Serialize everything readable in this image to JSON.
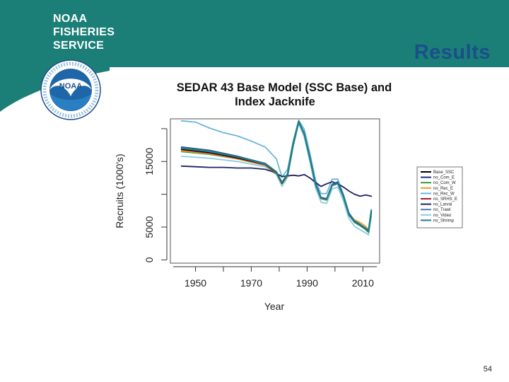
{
  "header": {
    "org_lines": [
      "NOAA",
      "FISHERIES",
      "SERVICE"
    ],
    "logo_text": "NOAA",
    "band_color": "#1b7f77"
  },
  "slide": {
    "title": "Results",
    "page_number": "54"
  },
  "chart_data": {
    "type": "line",
    "title_lines": [
      "SEDAR 43 Base Model (SSC Base) and",
      "Index Jacknife"
    ],
    "xlabel": "Year",
    "ylabel": "Recruits (1000's)",
    "xlim": [
      1941,
      2016
    ],
    "ylim": [
      -500,
      21500
    ],
    "x_ticks": [
      1950,
      1970,
      1990,
      2010
    ],
    "x_minor_ticks": [
      1960,
      1980,
      2000
    ],
    "y_ticks": [
      0,
      5000,
      15000
    ],
    "y_minor_ticks": [
      10000,
      20000
    ],
    "series": [
      {
        "name": "Base_SSC",
        "color": "#000000",
        "points": [
          [
            1945,
            16900
          ],
          [
            1955,
            16400
          ],
          [
            1965,
            15600
          ],
          [
            1975,
            14600
          ],
          [
            1979,
            13300
          ],
          [
            1981,
            11700
          ],
          [
            1983,
            13000
          ],
          [
            1985,
            17600
          ],
          [
            1987,
            21100
          ],
          [
            1989,
            19200
          ],
          [
            1991,
            15600
          ],
          [
            1993,
            11600
          ],
          [
            1995,
            9500
          ],
          [
            1997,
            9300
          ],
          [
            1999,
            11400
          ],
          [
            2001,
            11800
          ],
          [
            2003,
            9800
          ],
          [
            2005,
            7000
          ],
          [
            2007,
            5800
          ],
          [
            2009,
            5300
          ],
          [
            2011,
            4700
          ],
          [
            2012,
            4300
          ],
          [
            2013,
            7300
          ]
        ]
      },
      {
        "name": "no_Com_E",
        "color": "#1f2f8a",
        "points": [
          [
            1945,
            17200
          ],
          [
            1955,
            16700
          ],
          [
            1965,
            15800
          ],
          [
            1975,
            14700
          ],
          [
            1979,
            13400
          ],
          [
            1981,
            11800
          ],
          [
            1983,
            13100
          ],
          [
            1985,
            17700
          ],
          [
            1987,
            21100
          ],
          [
            1989,
            19300
          ],
          [
            1991,
            15600
          ],
          [
            1993,
            11700
          ],
          [
            1995,
            9500
          ],
          [
            1997,
            9300
          ],
          [
            1999,
            11500
          ],
          [
            2001,
            11800
          ],
          [
            2003,
            9800
          ],
          [
            2005,
            7000
          ],
          [
            2007,
            5900
          ],
          [
            2009,
            5400
          ],
          [
            2011,
            4800
          ],
          [
            2012,
            4400
          ],
          [
            2013,
            7400
          ]
        ]
      },
      {
        "name": "no_Com_W",
        "color": "#2e9e3e",
        "points": [
          [
            1945,
            16500
          ],
          [
            1955,
            16100
          ],
          [
            1965,
            15400
          ],
          [
            1975,
            14400
          ],
          [
            1979,
            13200
          ],
          [
            1981,
            11600
          ],
          [
            1983,
            12900
          ],
          [
            1985,
            17500
          ],
          [
            1987,
            21000
          ],
          [
            1989,
            19100
          ],
          [
            1991,
            15400
          ],
          [
            1993,
            11500
          ],
          [
            1995,
            9400
          ],
          [
            1997,
            9200
          ],
          [
            1999,
            11300
          ],
          [
            2001,
            11600
          ],
          [
            2003,
            9600
          ],
          [
            2005,
            6800
          ],
          [
            2007,
            5700
          ],
          [
            2009,
            5200
          ],
          [
            2011,
            4600
          ],
          [
            2012,
            4200
          ],
          [
            2013,
            7100
          ]
        ]
      },
      {
        "name": "no_Rec_E",
        "color": "#e0a020",
        "points": [
          [
            1945,
            16600
          ],
          [
            1955,
            16200
          ],
          [
            1965,
            15400
          ],
          [
            1975,
            14400
          ],
          [
            1979,
            13200
          ],
          [
            1981,
            11600
          ],
          [
            1983,
            12900
          ],
          [
            1985,
            17500
          ],
          [
            1987,
            21000
          ],
          [
            1989,
            19100
          ],
          [
            1991,
            15500
          ],
          [
            1993,
            11500
          ],
          [
            1995,
            9300
          ],
          [
            1997,
            9100
          ],
          [
            1999,
            11300
          ],
          [
            2001,
            11700
          ],
          [
            2003,
            9700
          ],
          [
            2005,
            6900
          ],
          [
            2007,
            6100
          ],
          [
            2009,
            5700
          ],
          [
            2011,
            5100
          ],
          [
            2012,
            4600
          ],
          [
            2013,
            7300
          ]
        ]
      },
      {
        "name": "no_Rec_W",
        "color": "#6bb5dc",
        "points": [
          [
            1945,
            21200
          ],
          [
            1950,
            21000
          ],
          [
            1955,
            20100
          ],
          [
            1960,
            19400
          ],
          [
            1965,
            18900
          ],
          [
            1970,
            18100
          ],
          [
            1975,
            17200
          ],
          [
            1979,
            15400
          ],
          [
            1981,
            12600
          ],
          [
            1983,
            13800
          ],
          [
            1985,
            18100
          ],
          [
            1987,
            21300
          ],
          [
            1989,
            19900
          ],
          [
            1991,
            16300
          ],
          [
            1993,
            12200
          ],
          [
            1995,
            10100
          ],
          [
            1997,
            10100
          ],
          [
            1999,
            12300
          ],
          [
            2001,
            12300
          ],
          [
            2003,
            10000
          ],
          [
            2005,
            7200
          ],
          [
            2007,
            6000
          ],
          [
            2009,
            5400
          ],
          [
            2011,
            4800
          ],
          [
            2012,
            4500
          ],
          [
            2013,
            7700
          ]
        ]
      },
      {
        "name": "no_SRHS_E",
        "color": "#a51c2e",
        "points": [
          [
            1945,
            16800
          ],
          [
            1955,
            16300
          ],
          [
            1965,
            15500
          ],
          [
            1975,
            14500
          ],
          [
            1979,
            13300
          ],
          [
            1981,
            11700
          ],
          [
            1983,
            13000
          ],
          [
            1985,
            17600
          ],
          [
            1987,
            21000
          ],
          [
            1989,
            19200
          ],
          [
            1991,
            15500
          ],
          [
            1993,
            11600
          ],
          [
            1995,
            9400
          ],
          [
            1997,
            9200
          ],
          [
            1999,
            11400
          ],
          [
            2001,
            11700
          ],
          [
            2003,
            9700
          ],
          [
            2005,
            6900
          ],
          [
            2007,
            5800
          ],
          [
            2009,
            5300
          ],
          [
            2011,
            4700
          ],
          [
            2012,
            4300
          ],
          [
            2013,
            7200
          ]
        ]
      },
      {
        "name": "no_Larval",
        "color": "#1f2366",
        "points": [
          [
            1945,
            14300
          ],
          [
            1950,
            14200
          ],
          [
            1955,
            14100
          ],
          [
            1960,
            14100
          ],
          [
            1965,
            14000
          ],
          [
            1970,
            14000
          ],
          [
            1975,
            13800
          ],
          [
            1978,
            13400
          ],
          [
            1981,
            12700
          ],
          [
            1983,
            12800
          ],
          [
            1985,
            12900
          ],
          [
            1987,
            12800
          ],
          [
            1989,
            13000
          ],
          [
            1991,
            12500
          ],
          [
            1993,
            11800
          ],
          [
            1995,
            11200
          ],
          [
            1997,
            11600
          ],
          [
            1999,
            11900
          ],
          [
            2001,
            11600
          ],
          [
            2003,
            11100
          ],
          [
            2005,
            10500
          ],
          [
            2007,
            10000
          ],
          [
            2009,
            9700
          ],
          [
            2011,
            9900
          ],
          [
            2013,
            9700
          ]
        ]
      },
      {
        "name": "no_Trawl",
        "color": "#4b7ab8",
        "points": [
          [
            1945,
            17000
          ],
          [
            1955,
            16500
          ],
          [
            1965,
            15700
          ],
          [
            1975,
            14600
          ],
          [
            1979,
            13400
          ],
          [
            1981,
            11800
          ],
          [
            1983,
            13100
          ],
          [
            1985,
            17700
          ],
          [
            1987,
            21100
          ],
          [
            1989,
            19300
          ],
          [
            1991,
            15600
          ],
          [
            1993,
            11700
          ],
          [
            1995,
            9500
          ],
          [
            1997,
            9300
          ],
          [
            1999,
            11500
          ],
          [
            2001,
            11900
          ],
          [
            2003,
            9900
          ],
          [
            2005,
            7100
          ],
          [
            2007,
            5900
          ],
          [
            2009,
            5400
          ],
          [
            2011,
            4800
          ],
          [
            2012,
            4400
          ],
          [
            2013,
            7400
          ]
        ]
      },
      {
        "name": "no_Video",
        "color": "#8ccbe8",
        "points": [
          [
            1945,
            15800
          ],
          [
            1955,
            15500
          ],
          [
            1965,
            15000
          ],
          [
            1975,
            14200
          ],
          [
            1979,
            13000
          ],
          [
            1981,
            11200
          ],
          [
            1983,
            12600
          ],
          [
            1985,
            17200
          ],
          [
            1987,
            20800
          ],
          [
            1989,
            18700
          ],
          [
            1991,
            15000
          ],
          [
            1993,
            11000
          ],
          [
            1995,
            8800
          ],
          [
            1997,
            8600
          ],
          [
            1999,
            10800
          ],
          [
            2001,
            11100
          ],
          [
            2003,
            9000
          ],
          [
            2005,
            6300
          ],
          [
            2007,
            5100
          ],
          [
            2009,
            4600
          ],
          [
            2011,
            4100
          ],
          [
            2012,
            3800
          ],
          [
            2013,
            6600
          ]
        ]
      },
      {
        "name": "no_Shrimp",
        "color": "#1e7f86",
        "points": [
          [
            1945,
            17100
          ],
          [
            1955,
            16600
          ],
          [
            1965,
            15700
          ],
          [
            1975,
            14700
          ],
          [
            1979,
            13400
          ],
          [
            1981,
            11800
          ],
          [
            1983,
            13100
          ],
          [
            1985,
            17700
          ],
          [
            1987,
            21100
          ],
          [
            1989,
            19200
          ],
          [
            1991,
            15600
          ],
          [
            1993,
            11600
          ],
          [
            1995,
            9400
          ],
          [
            1997,
            9200
          ],
          [
            1999,
            11400
          ],
          [
            2001,
            11700
          ],
          [
            2003,
            9700
          ],
          [
            2005,
            6900
          ],
          [
            2007,
            5800
          ],
          [
            2009,
            5300
          ],
          [
            2011,
            4700
          ],
          [
            2012,
            4300
          ],
          [
            2013,
            7500
          ]
        ]
      }
    ]
  }
}
